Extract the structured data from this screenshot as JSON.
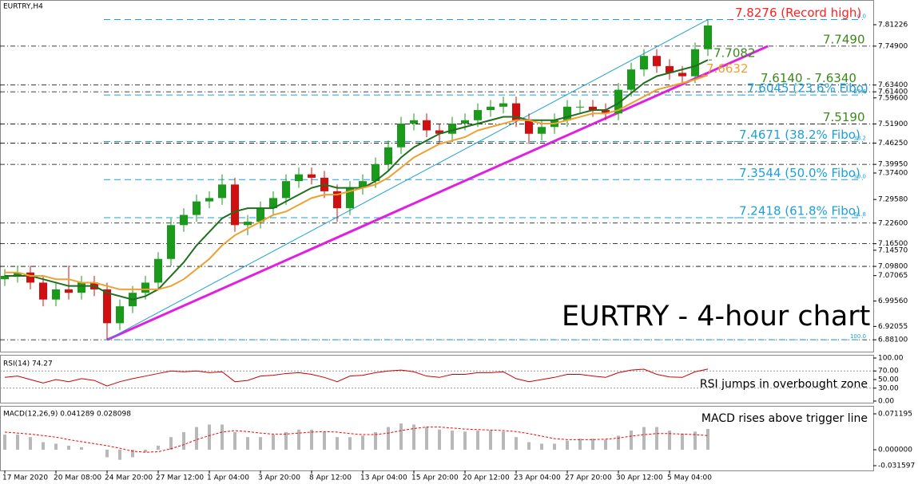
{
  "chart_data": [
    {
      "type": "candlestick",
      "title": "EURTRY,H4",
      "annotation": "EURTRY - 4-hour chart",
      "categories": [
        "17 Mar 2020",
        null,
        null,
        null,
        "20 Mar 08:00",
        null,
        null,
        null,
        "24 Mar 20:00",
        null,
        null,
        null,
        "27 Mar 12:00",
        null,
        null,
        null,
        "1 Apr 04:00",
        null,
        null,
        null,
        "3 Apr 20:00",
        null,
        null,
        null,
        "8 Apr 12:00",
        null,
        null,
        null,
        "13 Apr 04:00",
        null,
        null,
        null,
        "15 Apr 20:00",
        null,
        null,
        null,
        "20 Apr 12:00",
        null,
        null,
        null,
        "23 Apr 04:00",
        null,
        null,
        null,
        "27 Apr 20:00",
        null,
        null,
        null,
        "30 Apr 12:00",
        null,
        null,
        null,
        "5 May 04:00",
        null,
        null,
        null
      ],
      "open": [
        7.06,
        7.07,
        7.08,
        7.05,
        7.0,
        7.03,
        7.02,
        7.05,
        7.03,
        6.93,
        6.98,
        7.02,
        7.05,
        7.12,
        7.22,
        7.25,
        7.29,
        7.3,
        7.34,
        7.22,
        7.23,
        7.27,
        7.3,
        7.35,
        7.37,
        7.36,
        7.32,
        7.27,
        7.33,
        7.35,
        7.4,
        7.45,
        7.52,
        7.53,
        7.5,
        7.49,
        7.52,
        7.53,
        7.56,
        7.57,
        7.58,
        7.53,
        7.49,
        7.51,
        7.53,
        7.57,
        7.57,
        7.56,
        7.55,
        7.62,
        7.68,
        7.72,
        7.69,
        7.67,
        7.66,
        7.74
      ],
      "high": [
        7.09,
        7.1,
        7.1,
        7.07,
        7.05,
        7.1,
        7.07,
        7.07,
        7.05,
        7.0,
        7.04,
        7.07,
        7.14,
        7.24,
        7.27,
        7.31,
        7.32,
        7.37,
        7.36,
        7.25,
        7.29,
        7.32,
        7.37,
        7.39,
        7.39,
        7.38,
        7.34,
        7.35,
        7.37,
        7.42,
        7.47,
        7.54,
        7.55,
        7.55,
        7.52,
        7.54,
        7.55,
        7.58,
        7.59,
        7.6,
        7.6,
        7.55,
        7.53,
        7.55,
        7.59,
        7.59,
        7.59,
        7.58,
        7.64,
        7.7,
        7.74,
        7.74,
        7.71,
        7.69,
        7.76,
        7.8276
      ],
      "low": [
        7.04,
        7.05,
        7.03,
        6.98,
        6.98,
        7.0,
        7.0,
        7.01,
        6.881,
        6.91,
        6.96,
        7.0,
        7.03,
        7.1,
        7.2,
        7.23,
        7.27,
        7.28,
        7.2,
        7.19,
        7.21,
        7.25,
        7.28,
        7.33,
        7.34,
        7.3,
        7.23,
        7.25,
        7.31,
        7.33,
        7.38,
        7.43,
        7.5,
        7.48,
        7.46,
        7.47,
        7.5,
        7.51,
        7.54,
        7.55,
        7.51,
        7.46,
        7.47,
        7.49,
        7.51,
        7.55,
        7.54,
        7.53,
        7.53,
        7.6,
        7.66,
        7.67,
        7.65,
        7.64,
        7.64,
        7.72
      ],
      "close": [
        7.07,
        7.08,
        7.05,
        7.0,
        7.03,
        7.02,
        7.05,
        7.03,
        6.93,
        6.98,
        7.02,
        7.05,
        7.12,
        7.22,
        7.25,
        7.29,
        7.3,
        7.34,
        7.22,
        7.23,
        7.27,
        7.3,
        7.35,
        7.37,
        7.36,
        7.32,
        7.27,
        7.33,
        7.35,
        7.4,
        7.45,
        7.52,
        7.53,
        7.5,
        7.49,
        7.52,
        7.53,
        7.56,
        7.57,
        7.58,
        7.53,
        7.49,
        7.51,
        7.53,
        7.57,
        7.57,
        7.56,
        7.55,
        7.62,
        7.68,
        7.72,
        7.69,
        7.67,
        7.66,
        7.74,
        7.81
      ],
      "up_color": "#1a9a1a",
      "down_color": "#d01010",
      "moving_averages": [
        {
          "color": "#1f6f1f",
          "values": [
            7.07,
            7.07,
            7.07,
            7.06,
            7.05,
            7.04,
            7.04,
            7.04,
            7.02,
            7.01,
            7.0,
            7.01,
            7.03,
            7.07,
            7.11,
            7.16,
            7.2,
            7.24,
            7.26,
            7.27,
            7.27,
            7.27,
            7.29,
            7.31,
            7.33,
            7.34,
            7.33,
            7.33,
            7.33,
            7.35,
            7.38,
            7.42,
            7.45,
            7.47,
            7.49,
            7.5,
            7.51,
            7.52,
            7.53,
            7.54,
            7.54,
            7.53,
            7.53,
            7.53,
            7.54,
            7.55,
            7.56,
            7.56,
            7.58,
            7.61,
            7.64,
            7.66,
            7.67,
            7.68,
            7.69,
            7.7082
          ]
        },
        {
          "color": "#f0a030",
          "values": [
            7.08,
            7.08,
            7.07,
            7.07,
            7.06,
            7.06,
            7.05,
            7.05,
            7.04,
            7.03,
            7.03,
            7.03,
            7.03,
            7.04,
            7.06,
            7.09,
            7.12,
            7.16,
            7.19,
            7.21,
            7.23,
            7.25,
            7.26,
            7.28,
            7.3,
            7.31,
            7.31,
            7.32,
            7.33,
            7.34,
            7.36,
            7.39,
            7.42,
            7.44,
            7.46,
            7.47,
            7.48,
            7.5,
            7.51,
            7.52,
            7.53,
            7.53,
            7.52,
            7.52,
            7.53,
            7.54,
            7.55,
            7.55,
            7.56,
            7.58,
            7.6,
            7.62,
            7.63,
            7.64,
            7.65,
            7.6632
          ]
        }
      ],
      "levels": [
        {
          "value": 7.8276,
          "label": "7.8276 (Record high)",
          "color": "#ff2020"
        },
        {
          "value": 7.749,
          "label": "7.7490",
          "color": "#3a8a1a"
        },
        {
          "value": 7.7082,
          "label": "7.7082",
          "color": "#3a8a1a"
        },
        {
          "value": 7.6632,
          "label": "7.6632",
          "color": "#f0a030"
        },
        {
          "value": 7.634,
          "label": "7.6140 - 7.6340",
          "color": "#3a8a1a"
        },
        {
          "value": 7.6045,
          "label": "7.6045 (23.6% Fibo)",
          "color": "#1ea0d8"
        },
        {
          "value": 7.519,
          "label": "7.5190",
          "color": "#3a8a1a"
        },
        {
          "value": 7.4671,
          "label": "7.4671 (38.2% Fibo)",
          "color": "#1ea0d8"
        },
        {
          "value": 7.3544,
          "label": "7.3544 (50.0% Fibo)",
          "color": "#1ea0d8"
        },
        {
          "value": 7.2418,
          "label": "7.2418 (61.8% Fibo)",
          "color": "#1ea0d8"
        }
      ],
      "fibo_color": "#1ea0d8",
      "fibo": [
        {
          "value": 7.8276,
          "label": "0.0"
        },
        {
          "value": 7.6045,
          "label": "23.6"
        },
        {
          "value": 7.4671,
          "label": "38.2"
        },
        {
          "value": 7.3544,
          "label": "50.0"
        },
        {
          "value": 7.2418,
          "label": "61.8"
        },
        {
          "value": 6.881,
          "label": "100.0"
        }
      ],
      "sr_lines": [
        7.749,
        7.634,
        7.614,
        7.519,
        7.4625,
        7.3995,
        7.226,
        7.165,
        7.098,
        6.881
      ],
      "trendlines": [
        {
          "color": "#e020e0",
          "from": [
            8,
            6.881
          ],
          "to": [
            59.7,
            7.749
          ]
        },
        {
          "color": "#1ea0d8",
          "from": [
            8,
            6.881
          ],
          "to": [
            55,
            7.8276
          ]
        }
      ],
      "ylim": [
        6.846,
        7.883
      ],
      "yticks": [
        7.81226,
        {
          "value": 7.749,
          "label": "7.74900"
        },
        {
          "value": 7.634,
          "label": "7.63400"
        },
        {
          "value": 7.614,
          "label": "7.61400"
        },
        {
          "value": 7.596,
          "label": "7.59600"
        },
        {
          "value": 7.519,
          "label": "7.51900"
        },
        {
          "value": 7.4625,
          "label": "7.46250"
        },
        {
          "value": 7.3995,
          "label": "7.39950"
        },
        {
          "value": 7.374,
          "label": "7.37400"
        },
        {
          "value": 7.2958,
          "label": "7.29580"
        },
        {
          "value": 7.226,
          "label": "7.22600"
        },
        {
          "value": 7.165,
          "label": "7.16500"
        },
        {
          "value": 7.1457,
          "label": "7.14570"
        },
        {
          "value": 7.098,
          "label": "7.09800"
        },
        7.07065,
        {
          "value": 6.9956,
          "label": "6.99560"
        },
        6.92055,
        {
          "value": 6.881,
          "label": "6.88100"
        }
      ]
    },
    {
      "type": "line",
      "title": "RSI(14) 74.27",
      "annotation": "RSI jumps in overbought zone",
      "color": "#cc0000",
      "values": [
        55,
        58,
        50,
        42,
        50,
        45,
        52,
        48,
        35,
        45,
        52,
        58,
        64,
        70,
        68,
        70,
        66,
        68,
        45,
        48,
        58,
        60,
        64,
        66,
        62,
        55,
        45,
        58,
        60,
        66,
        70,
        72,
        68,
        58,
        55,
        62,
        62,
        66,
        66,
        68,
        52,
        45,
        50,
        55,
        62,
        62,
        58,
        55,
        66,
        72,
        74,
        62,
        56,
        55,
        68,
        74.27
      ],
      "levels": [
        70,
        30
      ],
      "ylim": [
        0,
        100
      ],
      "yticks": [
        {
          "value": 100,
          "label": "100.00"
        },
        {
          "value": 70,
          "label": "70.00"
        },
        {
          "value": 50,
          "label": "50.00"
        },
        {
          "value": 30,
          "label": "30.00"
        },
        {
          "value": 0,
          "label": "0.00"
        }
      ]
    },
    {
      "type": "bar",
      "title": "MACD(12,26,9) 0.041289 0.028098",
      "annotation": "MACD rises above trigger line",
      "series": [
        {
          "color": "#b8b8b8",
          "values": [
            0.03,
            0.03,
            0.025,
            0.015,
            0.012,
            0.008,
            0.005,
            0.0,
            -0.015,
            -0.02,
            -0.015,
            -0.005,
            0.008,
            0.025,
            0.035,
            0.045,
            0.05,
            0.05,
            0.035,
            0.025,
            0.025,
            0.03,
            0.035,
            0.04,
            0.04,
            0.035,
            0.025,
            0.025,
            0.028,
            0.035,
            0.045,
            0.052,
            0.05,
            0.045,
            0.04,
            0.038,
            0.036,
            0.038,
            0.038,
            0.036,
            0.025,
            0.015,
            0.012,
            0.012,
            0.018,
            0.022,
            0.022,
            0.02,
            0.028,
            0.038,
            0.045,
            0.045,
            0.038,
            0.032,
            0.036,
            0.041289
          ]
        },
        {
          "color": "#ff0000",
          "values": [
            0.035,
            0.033,
            0.031,
            0.028,
            0.025,
            0.02,
            0.016,
            0.012,
            0.008,
            0.003,
            -0.003,
            -0.005,
            -0.004,
            0.002,
            0.01,
            0.02,
            0.028,
            0.035,
            0.038,
            0.036,
            0.033,
            0.031,
            0.031,
            0.033,
            0.035,
            0.036,
            0.035,
            0.032,
            0.03,
            0.03,
            0.033,
            0.038,
            0.042,
            0.045,
            0.045,
            0.043,
            0.041,
            0.04,
            0.039,
            0.038,
            0.036,
            0.032,
            0.027,
            0.022,
            0.02,
            0.02,
            0.02,
            0.021,
            0.023,
            0.027,
            0.03,
            0.032,
            0.032,
            0.031,
            0.03,
            0.028098
          ]
        }
      ],
      "ylim": [
        -0.0411,
        0.0823
      ],
      "yticks": [
        0.071195,
        {
          "value": 0,
          "label": "0.000000"
        },
        -0.031597
      ]
    }
  ]
}
